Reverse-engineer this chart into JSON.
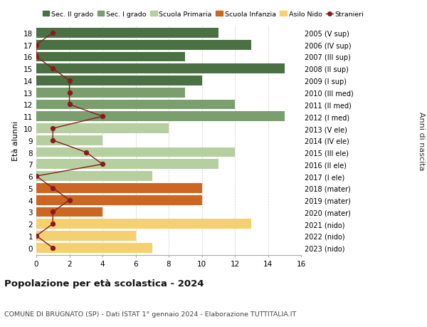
{
  "ages": [
    18,
    17,
    16,
    15,
    14,
    13,
    12,
    11,
    10,
    9,
    8,
    7,
    6,
    5,
    4,
    3,
    2,
    1,
    0
  ],
  "years_labels": [
    "2005 (V sup)",
    "2006 (IV sup)",
    "2007 (III sup)",
    "2008 (II sup)",
    "2009 (I sup)",
    "2010 (III med)",
    "2011 (II med)",
    "2012 (I med)",
    "2013 (V ele)",
    "2014 (IV ele)",
    "2015 (III ele)",
    "2016 (II ele)",
    "2017 (I ele)",
    "2018 (mater)",
    "2019 (mater)",
    "2020 (mater)",
    "2021 (nido)",
    "2022 (nido)",
    "2023 (nido)"
  ],
  "bar_values": [
    11,
    13,
    9,
    15,
    10,
    9,
    12,
    15,
    8,
    4,
    12,
    11,
    7,
    10,
    10,
    4,
    13,
    6,
    7
  ],
  "bar_colors": [
    "#4a7043",
    "#4a7043",
    "#4a7043",
    "#4a7043",
    "#4a7043",
    "#7a9e6e",
    "#7a9e6e",
    "#7a9e6e",
    "#b5cfa0",
    "#b5cfa0",
    "#b5cfa0",
    "#b5cfa0",
    "#b5cfa0",
    "#cc6622",
    "#cc6622",
    "#cc6622",
    "#f5d070",
    "#f5d070",
    "#f5d070"
  ],
  "stranieri_values": [
    1,
    0,
    0,
    1,
    2,
    2,
    2,
    4,
    1,
    1,
    3,
    4,
    0,
    1,
    2,
    1,
    1,
    0,
    1
  ],
  "legend_labels": [
    "Sec. II grado",
    "Sec. I grado",
    "Scuola Primaria",
    "Scuola Infanzia",
    "Asilo Nido",
    "Stranieri"
  ],
  "legend_colors": [
    "#4a7043",
    "#7a9e6e",
    "#b5cfa0",
    "#cc6622",
    "#f5d070",
    "#8b1a1a"
  ],
  "title": "Popolazione per età scolastica - 2024",
  "subtitle": "COMUNE DI BRUGNATO (SP) - Dati ISTAT 1° gennaio 2024 - Elaborazione TUTTITALIA.IT",
  "ylabel_left": "Età alunni",
  "ylabel_right": "Anni di nascita",
  "xlim": [
    0,
    16
  ],
  "xticks": [
    0,
    2,
    4,
    6,
    8,
    10,
    12,
    14,
    16
  ],
  "bg_color": "#ffffff",
  "grid_color": "#cccccc",
  "bar_height": 0.82
}
